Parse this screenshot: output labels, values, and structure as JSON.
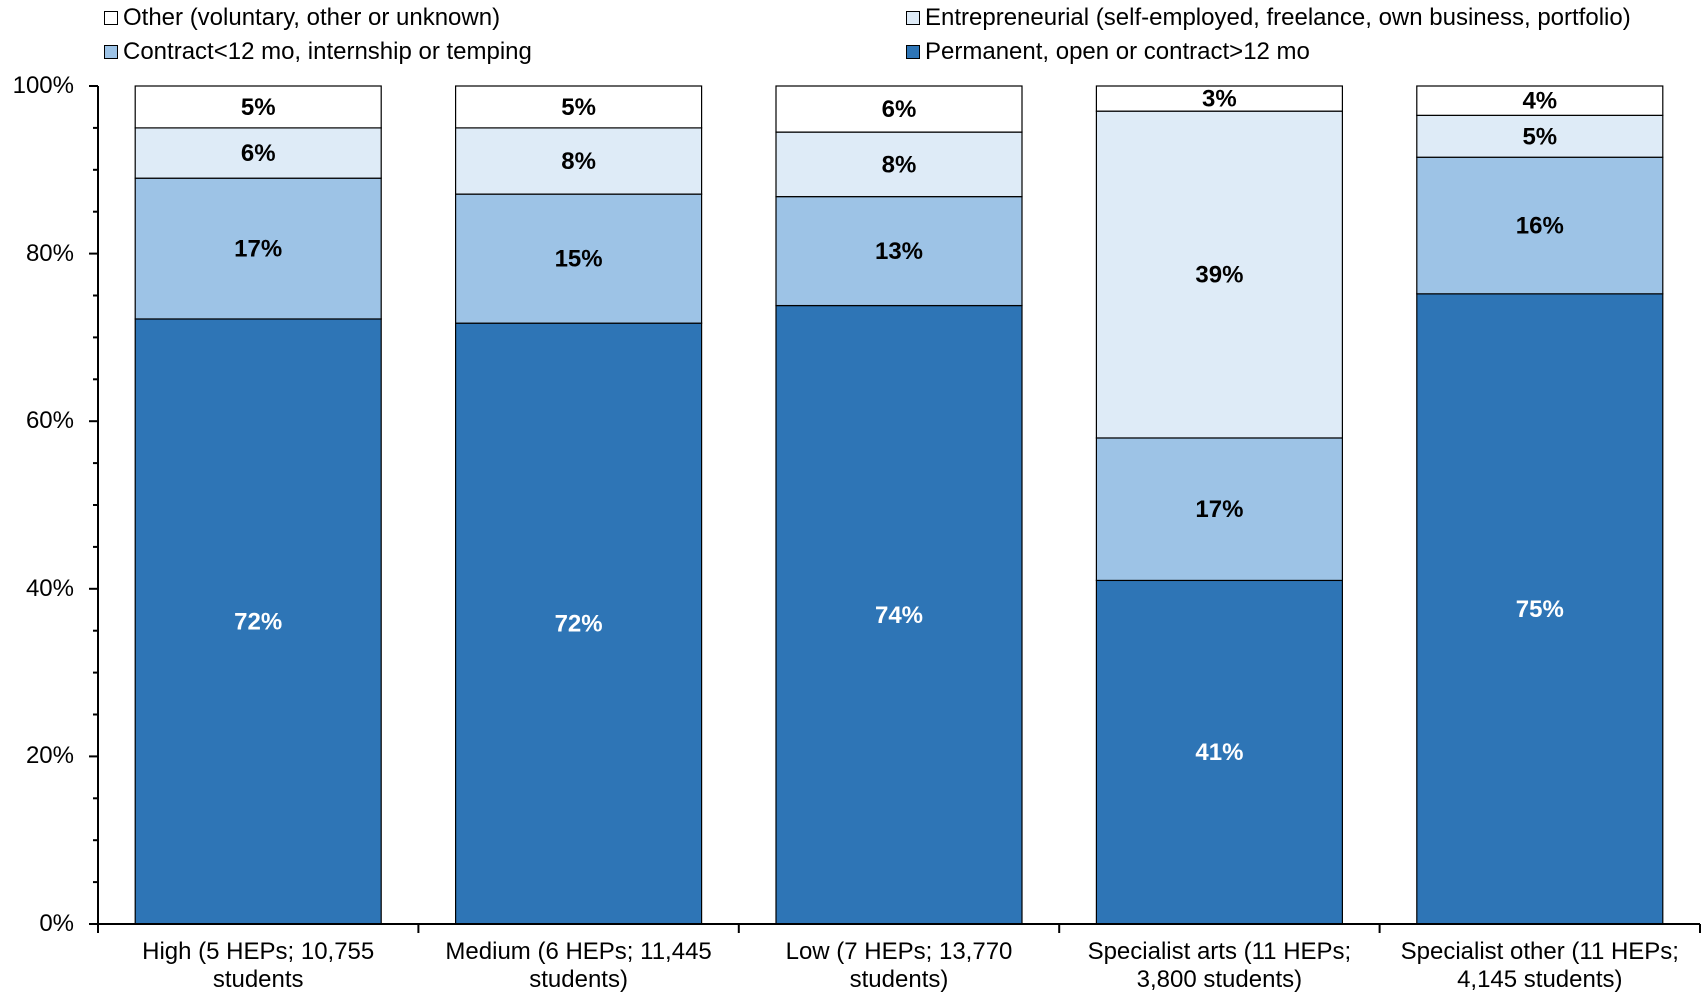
{
  "chart_data": {
    "type": "bar",
    "stacked": true,
    "percent_stacked": true,
    "categories": [
      "High (5 HEPs; 10,755 students)",
      "Medium (6 HEPs; 11,445 students)",
      "Low (7 HEPs; 13,770 students)",
      "Specialist arts (11 HEPs; 3,800 students)",
      "Specialist other (11 HEPs; 4,145 students)"
    ],
    "category_lines": [
      [
        "High (5 HEPs; 10,755",
        "students"
      ],
      [
        "Medium (6 HEPs; 11,445",
        "students)"
      ],
      [
        "Low (7 HEPs; 13,770",
        "students)"
      ],
      [
        "Specialist arts (11 HEPs;",
        "3,800 students)"
      ],
      [
        "Specialist other (11 HEPs;",
        "4,145 students)"
      ]
    ],
    "series": [
      {
        "name": "Permanent, open or contract>12 mo",
        "color": "#2E75B6",
        "label_color": "#ffffff",
        "values": [
          72.2,
          71.7,
          73.8,
          41.0,
          75.2
        ],
        "labels": [
          "72%",
          "72%",
          "74%",
          "41%",
          "75%"
        ]
      },
      {
        "name": "Contract<12 mo, internship or temping",
        "color": "#9DC3E6",
        "label_color": "#000000",
        "values": [
          16.8,
          15.4,
          13.0,
          17.0,
          16.3
        ],
        "labels": [
          "17%",
          "15%",
          "13%",
          "17%",
          "16%"
        ]
      },
      {
        "name": "Entrepreneurial (self-employed, freelance, own business, portfolio)",
        "color": "#DEEBF7",
        "label_color": "#000000",
        "values": [
          6.0,
          7.9,
          7.7,
          39.0,
          5.0
        ],
        "labels": [
          "6%",
          "8%",
          "8%",
          "39%",
          "5%"
        ]
      },
      {
        "name": "Other (voluntary, other or unknown)",
        "color": "#FFFFFF",
        "label_color": "#000000",
        "values": [
          5.0,
          5.0,
          5.5,
          3.0,
          3.5
        ],
        "labels": [
          "5%",
          "5%",
          "6%",
          "3%",
          "4%"
        ]
      }
    ],
    "legend_order": [
      3,
      2,
      1,
      0
    ],
    "yticks": [
      "0%",
      "20%",
      "40%",
      "60%",
      "80%",
      "100%"
    ],
    "ylim": [
      0,
      100
    ],
    "ytick_step": 20,
    "yminor_step": 5,
    "grid": false,
    "legend_position": "top",
    "title": "",
    "xlabel": "",
    "ylabel": ""
  }
}
